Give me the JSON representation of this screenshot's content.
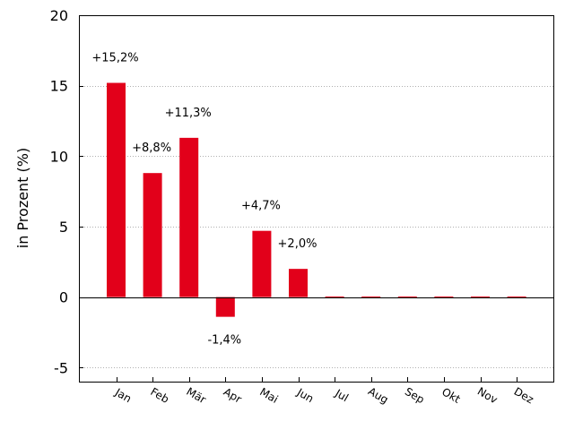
{
  "chart_data": {
    "type": "bar",
    "categories": [
      "Jan",
      "Feb",
      "Mär",
      "Apr",
      "Mai",
      "Jun",
      "Jul",
      "Aug",
      "Sep",
      "Okt",
      "Nov",
      "Dez"
    ],
    "values": [
      15.2,
      8.8,
      11.3,
      -1.4,
      4.7,
      2.0,
      0,
      0,
      0,
      0,
      0,
      0
    ],
    "data_labels": [
      "+15,2%",
      "+8,8%",
      "+11,3%",
      "-1,4%",
      "+4,7%",
      "+2,0%",
      "",
      "",
      "",
      "",
      "",
      ""
    ],
    "title": "",
    "xlabel": "",
    "ylabel": "in Prozent (%)",
    "ylim": [
      -6,
      20
    ],
    "yticks": [
      -5,
      0,
      5,
      10,
      15,
      20
    ],
    "ytick_labels": [
      "-5",
      "0",
      "5",
      "10",
      "15",
      "20"
    ],
    "grid": "horizontal dotted",
    "legend": "none",
    "bar_color": "#e2001a",
    "grid_color": "#b0b0b0",
    "zero_line_color": "#000000"
  }
}
